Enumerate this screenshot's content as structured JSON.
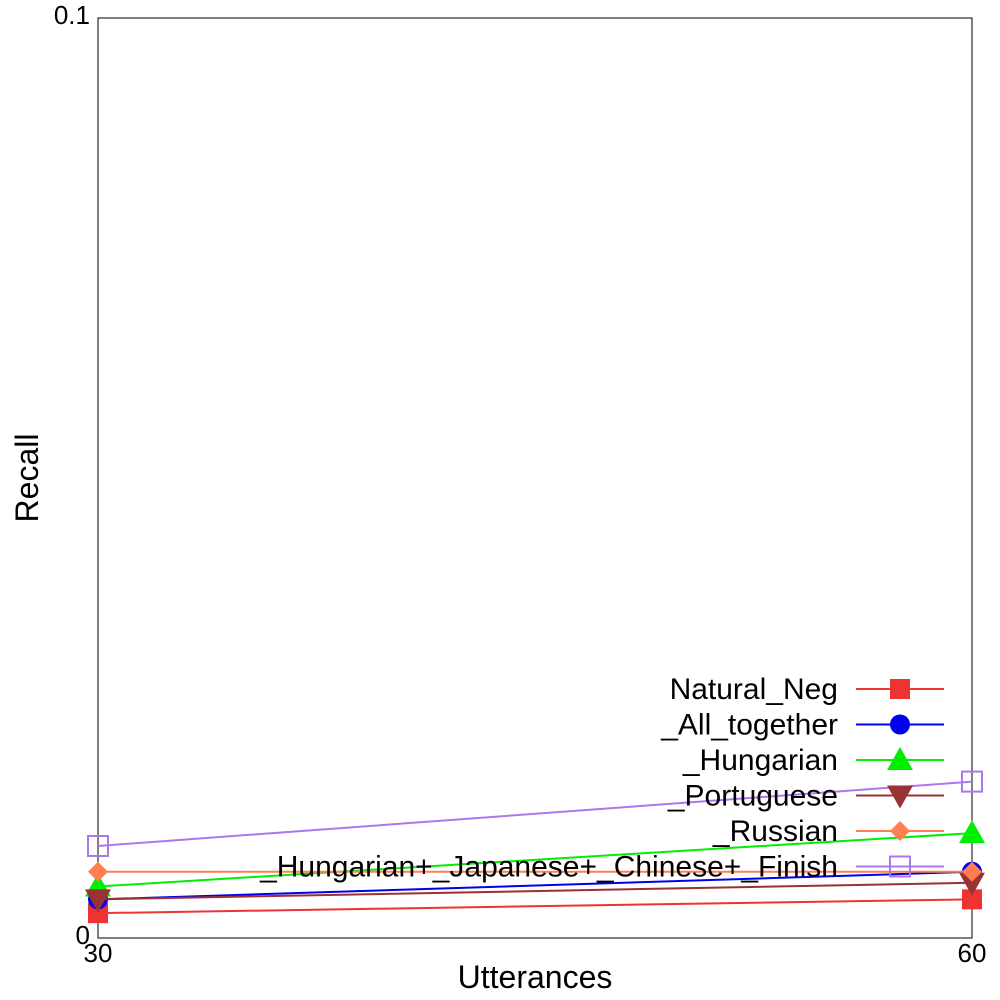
{
  "chart_data": {
    "type": "line",
    "title": "",
    "xlabel": "Utterances",
    "ylabel": "Recall",
    "x": [
      30,
      60
    ],
    "xlim": [
      30,
      60
    ],
    "ylim": [
      0,
      0.1
    ],
    "x_ticks": [
      "30",
      "60"
    ],
    "y_ticks": [
      "0",
      "0.1"
    ],
    "grid": false,
    "legend_position": "bottom-right",
    "series": [
      {
        "name": "Natural_Neg",
        "values": [
          0.0027,
          0.0042
        ],
        "color": "#ee3333",
        "marker": "square"
      },
      {
        "name": "_All_together",
        "values": [
          0.0042,
          0.0072
        ],
        "color": "#0000ee",
        "marker": "circle"
      },
      {
        "name": "_Hungarian",
        "values": [
          0.0056,
          0.0114
        ],
        "color": "#00ee00",
        "marker": "triangle-up"
      },
      {
        "name": "_Portuguese",
        "values": [
          0.0042,
          0.006
        ],
        "color": "#993333",
        "marker": "triangle-down"
      },
      {
        "name": "_Russian",
        "values": [
          0.0072,
          0.0072
        ],
        "color": "#ff7f50",
        "marker": "diamond"
      },
      {
        "name": "_Hungarian+_Japanese+_Chinese+_Finish",
        "values": [
          0.01,
          0.017
        ],
        "color": "#aa77ee",
        "marker": "open-square"
      }
    ]
  }
}
